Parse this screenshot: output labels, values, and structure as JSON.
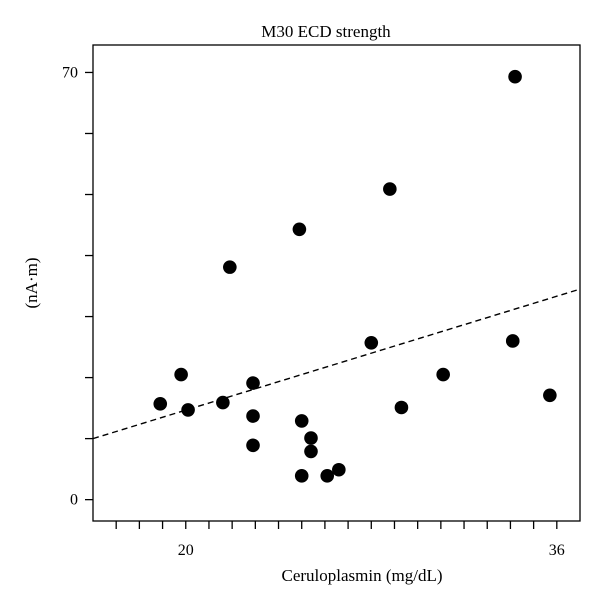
{
  "chart_data": {
    "type": "scatter",
    "title": "M30 ECD strength",
    "xlabel": "Ceruloplasmin (mg/dL)",
    "ylabel": "(nA·m)",
    "xlim": [
      16,
      37
    ],
    "ylim": [
      -3.5,
      74.5
    ],
    "x_ticks": [
      17,
      18,
      19,
      20,
      21,
      22,
      23,
      24,
      25,
      26,
      27,
      28,
      29,
      30,
      31,
      32,
      33,
      34,
      35,
      36
    ],
    "x_tick_labels": [
      {
        "value": 20,
        "label": "20"
      },
      {
        "value": 36,
        "label": "36"
      }
    ],
    "y_ticks": [
      0,
      10,
      20,
      30,
      40,
      50,
      60,
      70
    ],
    "y_tick_labels": [
      {
        "value": 0,
        "label": "0"
      },
      {
        "value": 70,
        "label": "70"
      }
    ],
    "grid": false,
    "series": [
      {
        "marker": "filled-circle",
        "color": "#000000",
        "points": [
          {
            "x": 18.9,
            "y": 15.7
          },
          {
            "x": 19.8,
            "y": 20.5
          },
          {
            "x": 20.1,
            "y": 14.7
          },
          {
            "x": 21.6,
            "y": 15.9
          },
          {
            "x": 21.9,
            "y": 38.1
          },
          {
            "x": 22.9,
            "y": 19.1
          },
          {
            "x": 22.9,
            "y": 13.7
          },
          {
            "x": 22.9,
            "y": 8.9
          },
          {
            "x": 24.9,
            "y": 44.3
          },
          {
            "x": 25.0,
            "y": 12.9
          },
          {
            "x": 25.0,
            "y": 3.9
          },
          {
            "x": 25.4,
            "y": 10.1
          },
          {
            "x": 25.4,
            "y": 7.9
          },
          {
            "x": 26.1,
            "y": 3.9
          },
          {
            "x": 26.6,
            "y": 4.9
          },
          {
            "x": 28.0,
            "y": 25.7
          },
          {
            "x": 28.8,
            "y": 50.9
          },
          {
            "x": 29.3,
            "y": 15.1
          },
          {
            "x": 31.1,
            "y": 20.5
          },
          {
            "x": 34.2,
            "y": 69.3
          },
          {
            "x": 34.1,
            "y": 26.0
          },
          {
            "x": 35.7,
            "y": 17.1
          }
        ]
      }
    ],
    "trend_line": {
      "style": "dashed",
      "color": "#000000",
      "points": [
        {
          "x": 16,
          "y": 10.0
        },
        {
          "x": 37,
          "y": 34.5
        }
      ]
    }
  }
}
